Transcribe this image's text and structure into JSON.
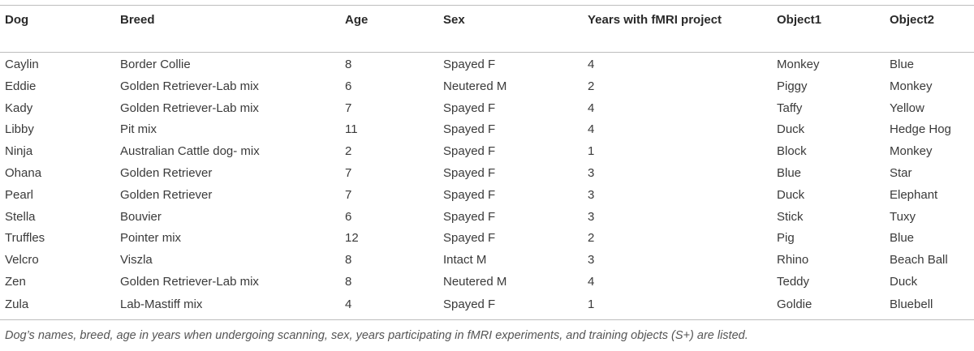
{
  "table": {
    "headers": [
      "Dog",
      "Breed",
      "Age",
      "Sex",
      "Years with fMRI project",
      "Object1",
      "Object2"
    ],
    "rows": [
      [
        "Caylin",
        "Border Collie",
        "8",
        "Spayed F",
        "4",
        "Monkey",
        "Blue"
      ],
      [
        "Eddie",
        "Golden Retriever-Lab mix",
        "6",
        "Neutered M",
        "2",
        "Piggy",
        "Monkey"
      ],
      [
        "Kady",
        "Golden Retriever-Lab mix",
        "7",
        "Spayed F",
        "4",
        "Taffy",
        "Yellow"
      ],
      [
        "Libby",
        "Pit mix",
        "11",
        "Spayed F",
        "4",
        "Duck",
        "Hedge Hog"
      ],
      [
        "Ninja",
        "Australian Cattle dog- mix",
        "2",
        "Spayed F",
        "1",
        "Block",
        "Monkey"
      ],
      [
        "Ohana",
        "Golden Retriever",
        "7",
        "Spayed F",
        "3",
        "Blue",
        "Star"
      ],
      [
        "Pearl",
        "Golden Retriever",
        "7",
        "Spayed F",
        "3",
        "Duck",
        "Elephant"
      ],
      [
        "Stella",
        "Bouvier",
        "6",
        "Spayed F",
        "3",
        "Stick",
        "Tuxy"
      ],
      [
        "Truffles",
        "Pointer mix",
        "12",
        "Spayed F",
        "2",
        "Pig",
        "Blue"
      ],
      [
        "Velcro",
        "Viszla",
        "8",
        "Intact M",
        "3",
        "Rhino",
        "Beach Ball"
      ],
      [
        "Zen",
        "Golden Retriever-Lab mix",
        "8",
        "Neutered M",
        "4",
        "Teddy",
        "Duck"
      ],
      [
        "Zula",
        "Lab-Mastiff mix",
        "4",
        "Spayed F",
        "1",
        "Goldie",
        "Bluebell"
      ]
    ]
  },
  "caption": "Dog’s names, breed, age in years when undergoing scanning, sex, years participating in fMRI experiments, and training objects (S+) are listed."
}
